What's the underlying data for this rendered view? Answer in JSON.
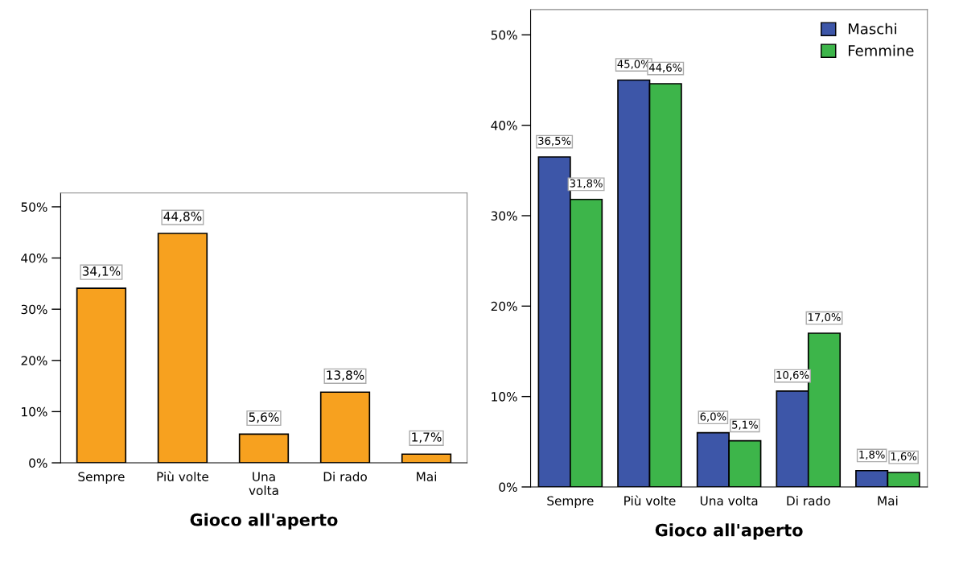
{
  "chart_data": [
    {
      "type": "bar",
      "xlabel": "Gioco all'aperto",
      "categories": [
        "Sempre",
        "Più volte",
        "Una\nvolta",
        "Di rado",
        "Mai"
      ],
      "series": [
        {
          "color": "#f7a11f",
          "values": [
            34.1,
            44.8,
            5.6,
            13.8,
            1.7
          ],
          "value_labels": [
            "34,1%",
            "44,8%",
            "5,6%",
            "13,8%",
            "1,7%"
          ]
        }
      ],
      "ylim": [
        0,
        52.7
      ],
      "yticks": [
        {
          "value": 0,
          "label": "0%"
        },
        {
          "value": 10,
          "label": "10%"
        },
        {
          "value": 20,
          "label": "20%"
        },
        {
          "value": 30,
          "label": "30%"
        },
        {
          "value": 40,
          "label": "40%"
        },
        {
          "value": 50,
          "label": "50%"
        }
      ],
      "grid": false,
      "legend": false
    },
    {
      "type": "bar",
      "xlabel": "Gioco all'aperto",
      "categories": [
        "Sempre",
        "Più volte",
        "Una volta",
        "Di rado",
        "Mai"
      ],
      "series": [
        {
          "name": "Maschi",
          "color": "#3d56a8",
          "values": [
            36.5,
            45.0,
            6.0,
            10.6,
            1.8
          ],
          "value_labels": [
            "36,5%",
            "45,0%",
            "6,0%",
            "10,6%",
            "1,8%"
          ]
        },
        {
          "name": "Femmine",
          "color": "#3db54a",
          "values": [
            31.8,
            44.6,
            5.1,
            17.0,
            1.6
          ],
          "value_labels": [
            "31,8%",
            "44,6%",
            "5,1%",
            "17,0%",
            "1,6%"
          ]
        }
      ],
      "ylim": [
        0,
        52.8
      ],
      "yticks": [
        {
          "value": 0,
          "label": "0%"
        },
        {
          "value": 10,
          "label": "10%"
        },
        {
          "value": 20,
          "label": "20%"
        },
        {
          "value": 30,
          "label": "30%"
        },
        {
          "value": 40,
          "label": "40%"
        },
        {
          "value": 50,
          "label": "50%"
        }
      ],
      "grid": false,
      "legend": "top right"
    }
  ]
}
